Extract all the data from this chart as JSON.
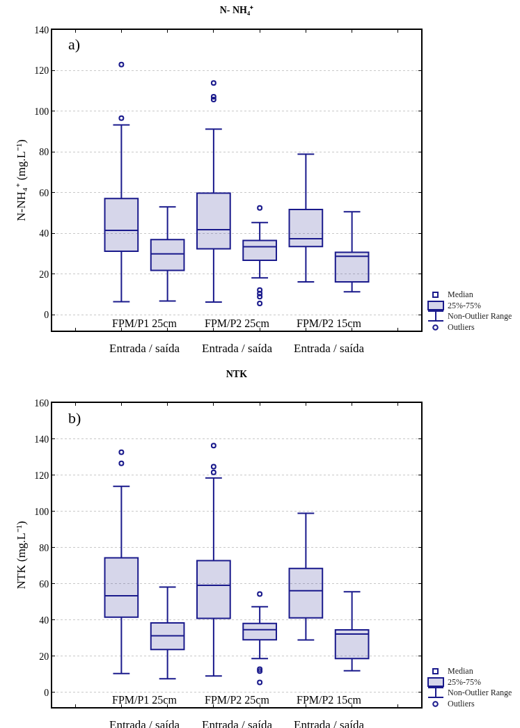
{
  "chart_data": [
    {
      "type": "box",
      "title": "N- NH₄⁺",
      "ylabel": "N-NH₄⁺ (mg.L⁻¹)",
      "categories": [
        null,
        null,
        null,
        null,
        null,
        null,
        null,
        null
      ],
      "series": [
        {
          "color": "#1a1a8c",
          "boxes": [
            null,
            {
              "low": 6.5,
              "q1": 31.3,
              "median": 41.5,
              "q3": 57.2,
              "high": 93.3,
              "outliers": [
                123,
                96.7
              ]
            },
            {
              "low": 6.8,
              "q1": 21.9,
              "median": 30,
              "q3": 37,
              "high": 53.1
            },
            {
              "low": 6.3,
              "q1": 32.5,
              "median": 41.9,
              "q3": 59.8,
              "high": 91.3,
              "outliers": [
                113.9,
                107.2,
                105.8
              ]
            },
            {
              "low": 18.2,
              "q1": 26.8,
              "median": 33.5,
              "q3": 36.6,
              "high": 45.4,
              "outliers": [
                52.6,
                12.2,
                10.5,
                9,
                5.6
              ]
            },
            {
              "low": 16.2,
              "q1": 33.6,
              "median": 37.4,
              "q3": 51.8,
              "high": 79
            },
            {
              "low": 11.4,
              "q1": 16.2,
              "median": 28.8,
              "q3": 30.8,
              "high": 50.7
            },
            null
          ]
        }
      ],
      "ylim": [
        -7.7,
        140
      ],
      "yticks": [
        0,
        20,
        40,
        60,
        80,
        100,
        120,
        140
      ],
      "grid": "y",
      "annotations": [
        "a)",
        "FPM/P1 25cm",
        "FPM/P2 25cm",
        "FPM/P2 15cm",
        "Entrada / saída",
        "Entrada / saída",
        "Entrada / saída",
        "Median",
        "25%-75%",
        "Non-Outlier Range",
        "Outliers"
      ]
    },
    {
      "type": "box",
      "title": "NTK",
      "ylabel": "NTK (mg.L⁻¹)",
      "categories": [
        null,
        null,
        null,
        null,
        null,
        null,
        null,
        null
      ],
      "series": [
        {
          "color": "#1a1a8c",
          "boxes": [
            null,
            {
              "low": 10.5,
              "q1": 41.6,
              "median": 53.4,
              "q3": 74.4,
              "high": 113.9,
              "outliers": [
                132.8,
                126.6
              ]
            },
            {
              "low": 7.6,
              "q1": 23.7,
              "median": 31.3,
              "q3": 38.4,
              "high": 58.3
            },
            {
              "low": 9.1,
              "q1": 40.9,
              "median": 59.2,
              "q3": 72.9,
              "high": 118.6,
              "outliers": [
                136.4,
                124.8,
                121.6
              ]
            },
            {
              "low": 18.7,
              "q1": 29.1,
              "median": 34.7,
              "q3": 38.2,
              "high": 47.4,
              "outliers": [
                54.4,
                12.9,
                11.8,
                5.6
              ]
            },
            {
              "low": 29,
              "q1": 41.2,
              "median": 56.2,
              "q3": 68.5,
              "high": 99
            },
            {
              "low": 12,
              "q1": 18.7,
              "median": 32.3,
              "q3": 34.6,
              "high": 55.7
            },
            null
          ]
        }
      ],
      "ylim": [
        -8.1,
        160
      ],
      "yticks": [
        0,
        20,
        40,
        60,
        80,
        100,
        120,
        140,
        160
      ],
      "grid": "y",
      "annotations": [
        "b)",
        "FPM/P1 25cm",
        "FPM/P2 25cm",
        "FPM/P2 15cm",
        "Entrada / saída",
        "Entrada / saída",
        "Entrada / saída",
        "Median",
        "25%-75%",
        "Non-Outlier Range",
        "Outliers"
      ]
    }
  ]
}
